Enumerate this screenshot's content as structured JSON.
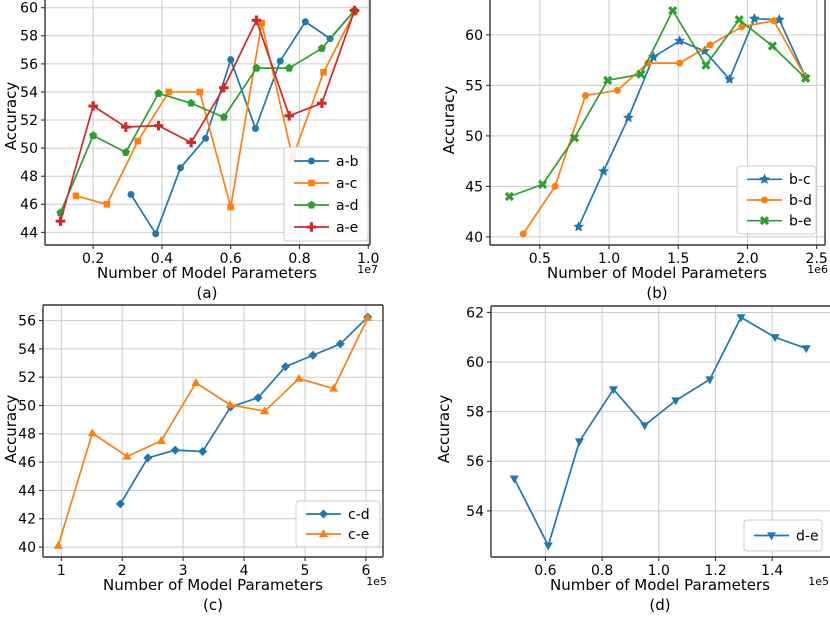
{
  "figure": {
    "background": "#ffffff",
    "colors": {
      "blue": "#1f77b4",
      "orange": "#ff7f0e",
      "green": "#2ca02c",
      "red": "#d62728",
      "grid": "#cccccc",
      "spine": "#333333",
      "text": "#000000",
      "legend_border": "#cccccc"
    }
  },
  "chart_data": [
    {
      "id": "a",
      "type": "line",
      "caption": "(a)",
      "xlabel": "Number of Model Parameters",
      "ylabel": "Accuracy",
      "offset_text": "1e7",
      "grid": true,
      "legend_position": "lower right",
      "xlim": [
        0.06,
        1.005
      ],
      "ylim": [
        43.1,
        60.55
      ],
      "xticks": {
        "values": [
          0.2,
          0.4,
          0.6,
          0.8,
          1.0
        ],
        "labels": [
          "0.2",
          "0.4",
          "0.6",
          "0.8",
          "1.0"
        ]
      },
      "yticks": {
        "values": [
          44,
          46,
          48,
          50,
          52,
          54,
          56,
          58,
          60
        ],
        "labels": [
          "44",
          "46",
          "48",
          "50",
          "52",
          "54",
          "56",
          "58",
          "60"
        ]
      },
      "series": [
        {
          "name": "a-b",
          "color": "#1f77b4",
          "marker": "circle",
          "x": [
            0.31,
            0.382,
            0.454,
            0.527,
            0.6,
            0.672,
            0.744,
            0.817,
            0.889,
            0.96
          ],
          "y": [
            46.7,
            43.9,
            48.6,
            50.7,
            56.3,
            51.4,
            56.2,
            59.0,
            57.8,
            59.8
          ]
        },
        {
          "name": "a-c",
          "color": "#ff7f0e",
          "marker": "square",
          "x": [
            0.15,
            0.24,
            0.33,
            0.42,
            0.51,
            0.6,
            0.69,
            0.78,
            0.87,
            0.96
          ],
          "y": [
            46.6,
            46.0,
            50.5,
            54.0,
            54.0,
            45.8,
            58.9,
            49.3,
            55.4,
            59.7
          ]
        },
        {
          "name": "a-d",
          "color": "#2ca02c",
          "marker": "pentagon",
          "x": [
            0.105,
            0.2,
            0.295,
            0.39,
            0.485,
            0.58,
            0.675,
            0.77,
            0.865,
            0.96
          ],
          "y": [
            45.4,
            50.9,
            49.7,
            53.9,
            53.2,
            52.2,
            55.7,
            55.7,
            57.1,
            59.8
          ]
        },
        {
          "name": "a-e",
          "color": "#d62728",
          "marker": "plus",
          "x": [
            0.105,
            0.2,
            0.295,
            0.39,
            0.485,
            0.58,
            0.675,
            0.77,
            0.865,
            0.96
          ],
          "y": [
            44.8,
            53.0,
            51.5,
            51.6,
            50.4,
            54.3,
            59.1,
            52.3,
            53.2,
            59.8
          ]
        }
      ]
    },
    {
      "id": "b",
      "type": "line",
      "caption": "(b)",
      "xlabel": "Number of Model Parameters",
      "ylabel": "Accuracy",
      "offset_text": "1e6",
      "grid": true,
      "legend_position": "lower right",
      "xlim": [
        0.14,
        2.56
      ],
      "ylim": [
        39.2,
        63.45
      ],
      "xticks": {
        "values": [
          0.5,
          1.0,
          1.5,
          2.0,
          2.5
        ],
        "labels": [
          "0.5",
          "1.0",
          "1.5",
          "2.0",
          "2.5"
        ]
      },
      "yticks": {
        "values": [
          40,
          45,
          50,
          55,
          60
        ],
        "labels": [
          "40",
          "45",
          "50",
          "55",
          "60"
        ]
      },
      "series": [
        {
          "name": "b-c",
          "color": "#1f77b4",
          "marker": "star",
          "x": [
            0.78,
            0.96,
            1.14,
            1.32,
            1.51,
            1.69,
            1.87,
            2.05,
            2.23,
            2.42
          ],
          "y": [
            41.0,
            46.5,
            51.8,
            57.8,
            59.4,
            58.4,
            55.6,
            61.6,
            61.5,
            55.8
          ]
        },
        {
          "name": "b-d",
          "color": "#ff7f0e",
          "marker": "circle",
          "x": [
            0.38,
            0.61,
            0.83,
            1.06,
            1.28,
            1.51,
            1.73,
            1.96,
            2.19,
            2.42
          ],
          "y": [
            40.3,
            45.0,
            54.0,
            54.5,
            57.2,
            57.2,
            59.0,
            60.8,
            61.4,
            55.8
          ]
        },
        {
          "name": "b-e",
          "color": "#2ca02c",
          "marker": "x",
          "x": [
            0.28,
            0.52,
            0.75,
            0.99,
            1.23,
            1.46,
            1.7,
            1.94,
            2.18,
            2.42
          ],
          "y": [
            44.0,
            45.2,
            49.8,
            55.5,
            56.1,
            62.4,
            57.0,
            61.5,
            58.9,
            55.7
          ]
        }
      ]
    },
    {
      "id": "c",
      "type": "line",
      "caption": "(c)",
      "xlabel": "Number of Model Parameters",
      "ylabel": "Accuracy",
      "offset_text": "1e5",
      "grid": true,
      "legend_position": "lower right",
      "xlim": [
        0.7,
        6.28
      ],
      "ylim": [
        39.3,
        57.1
      ],
      "xticks": {
        "values": [
          1,
          2,
          3,
          4,
          5,
          6
        ],
        "labels": [
          "1",
          "2",
          "3",
          "4",
          "5",
          "6"
        ]
      },
      "yticks": {
        "values": [
          40,
          42,
          44,
          46,
          48,
          50,
          52,
          54,
          56
        ],
        "labels": [
          "40",
          "42",
          "44",
          "46",
          "48",
          "50",
          "52",
          "54",
          "56"
        ]
      },
      "series": [
        {
          "name": "c-d",
          "color": "#1f77b4",
          "marker": "diamond",
          "x": [
            1.97,
            2.42,
            2.87,
            3.32,
            3.78,
            4.23,
            4.68,
            5.13,
            5.58,
            6.03
          ],
          "y": [
            43.05,
            46.3,
            46.85,
            46.75,
            49.9,
            50.55,
            52.75,
            53.55,
            54.35,
            56.25
          ]
        },
        {
          "name": "c-e",
          "color": "#ff7f0e",
          "marker": "triangle_up",
          "x": [
            0.95,
            1.51,
            2.08,
            2.64,
            3.21,
            3.77,
            4.34,
            4.9,
            5.47,
            6.03
          ],
          "y": [
            40.1,
            48.05,
            46.4,
            47.5,
            51.6,
            50.05,
            49.6,
            51.9,
            51.2,
            56.2
          ]
        }
      ]
    },
    {
      "id": "d",
      "type": "line",
      "caption": "(d)",
      "xlabel": "Number of Model Parameters",
      "ylabel": "Accuracy",
      "offset_text": "1e5",
      "grid": true,
      "legend_position": "lower right",
      "xlim": [
        0.408,
        1.604
      ],
      "ylim": [
        52.14,
        62.26
      ],
      "xticks": {
        "values": [
          0.6,
          0.8,
          1.0,
          1.2,
          1.4
        ],
        "labels": [
          "0.6",
          "0.8",
          "1.0",
          "1.2",
          "1.4"
        ]
      },
      "yticks": {
        "values": [
          54,
          56,
          58,
          60,
          62
        ],
        "labels": [
          "54",
          "56",
          "58",
          "60",
          "62"
        ]
      },
      "series": [
        {
          "name": "d-e",
          "color": "#1f77b4",
          "marker": "triangle_down",
          "x": [
            0.49,
            0.61,
            0.72,
            0.84,
            0.95,
            1.06,
            1.18,
            1.29,
            1.41,
            1.52
          ],
          "y": [
            55.3,
            52.6,
            56.8,
            58.9,
            57.45,
            58.45,
            59.3,
            61.8,
            61.0,
            60.55
          ]
        }
      ]
    }
  ]
}
